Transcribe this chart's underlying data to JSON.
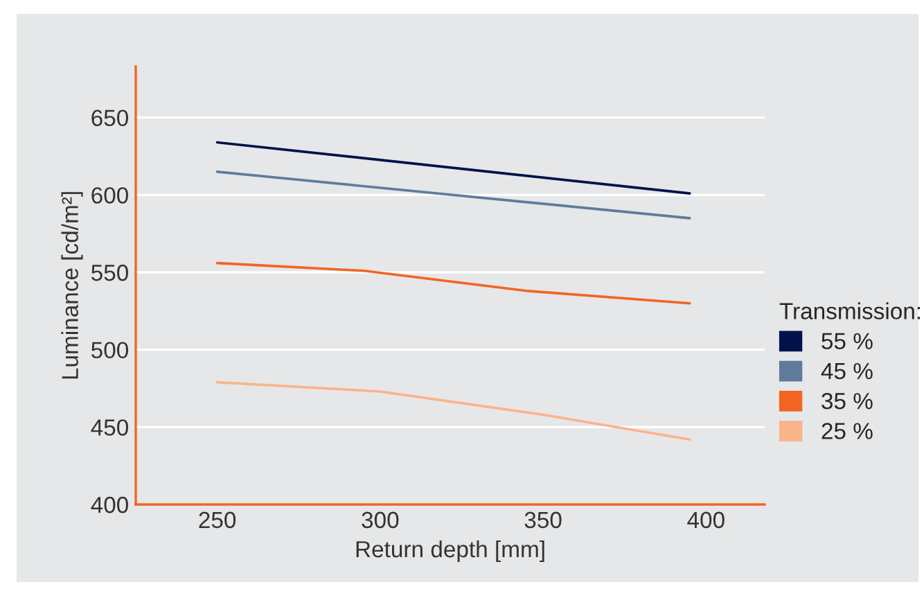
{
  "chart_data": {
    "type": "line",
    "xlabel": "Return depth [mm]",
    "ylabel": "Luminance [cd/m²]",
    "legend_title": "Transmission:",
    "series": [
      {
        "name": "55 %",
        "color": "#001249",
        "x": [
          250,
          395
        ],
        "values": [
          634,
          601
        ]
      },
      {
        "name": "45 %",
        "color": "#5f7b9c",
        "x": [
          250,
          395
        ],
        "values": [
          615,
          585
        ]
      },
      {
        "name": "35 %",
        "color": "#f26522",
        "x": [
          250,
          295,
          345,
          395
        ],
        "values": [
          556,
          551,
          538,
          530
        ]
      },
      {
        "name": "25 %",
        "color": "#f9b48a",
        "x": [
          250,
          300,
          350,
          395
        ],
        "values": [
          479,
          473,
          458,
          442
        ]
      }
    ],
    "xlim": [
      225,
      418
    ],
    "xticks": [
      250,
      300,
      350,
      400
    ],
    "ylim": [
      400,
      683
    ],
    "yticks": [
      400,
      450,
      500,
      550,
      600,
      650
    ],
    "grid": "y",
    "legend": "right",
    "marker": "none",
    "line_style": "solid"
  }
}
